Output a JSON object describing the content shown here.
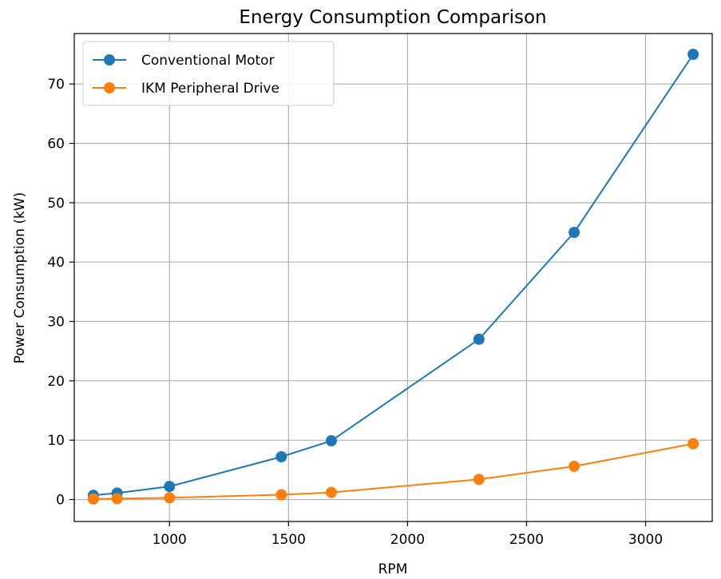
{
  "chart_data": {
    "type": "line",
    "title": "Energy Consumption Comparison",
    "xlabel": "RPM",
    "ylabel": "Power Consumption (kW)",
    "xlim": [
      600,
      3280
    ],
    "ylim": [
      -3.7,
      78.5
    ],
    "xticks": [
      1000,
      1500,
      2000,
      2500,
      3000
    ],
    "yticks": [
      0,
      10,
      20,
      30,
      40,
      50,
      60,
      70
    ],
    "grid": true,
    "legend_position": "top-left",
    "series": [
      {
        "name": "Conventional Motor",
        "color": "#1f77b4",
        "marker": "circle",
        "x": [
          680,
          780,
          1000,
          1470,
          1680,
          2300,
          2700,
          3200
        ],
        "y": [
          0.7,
          1.1,
          2.2,
          7.2,
          9.9,
          27.0,
          45.0,
          75.0
        ]
      },
      {
        "name": "IKM Peripheral Drive",
        "color": "#ff7f0e",
        "marker": "circle",
        "x": [
          680,
          780,
          1000,
          1470,
          1680,
          2300,
          2700,
          3200
        ],
        "y": [
          0.1,
          0.15,
          0.3,
          0.8,
          1.2,
          3.4,
          5.6,
          9.4
        ]
      }
    ]
  }
}
